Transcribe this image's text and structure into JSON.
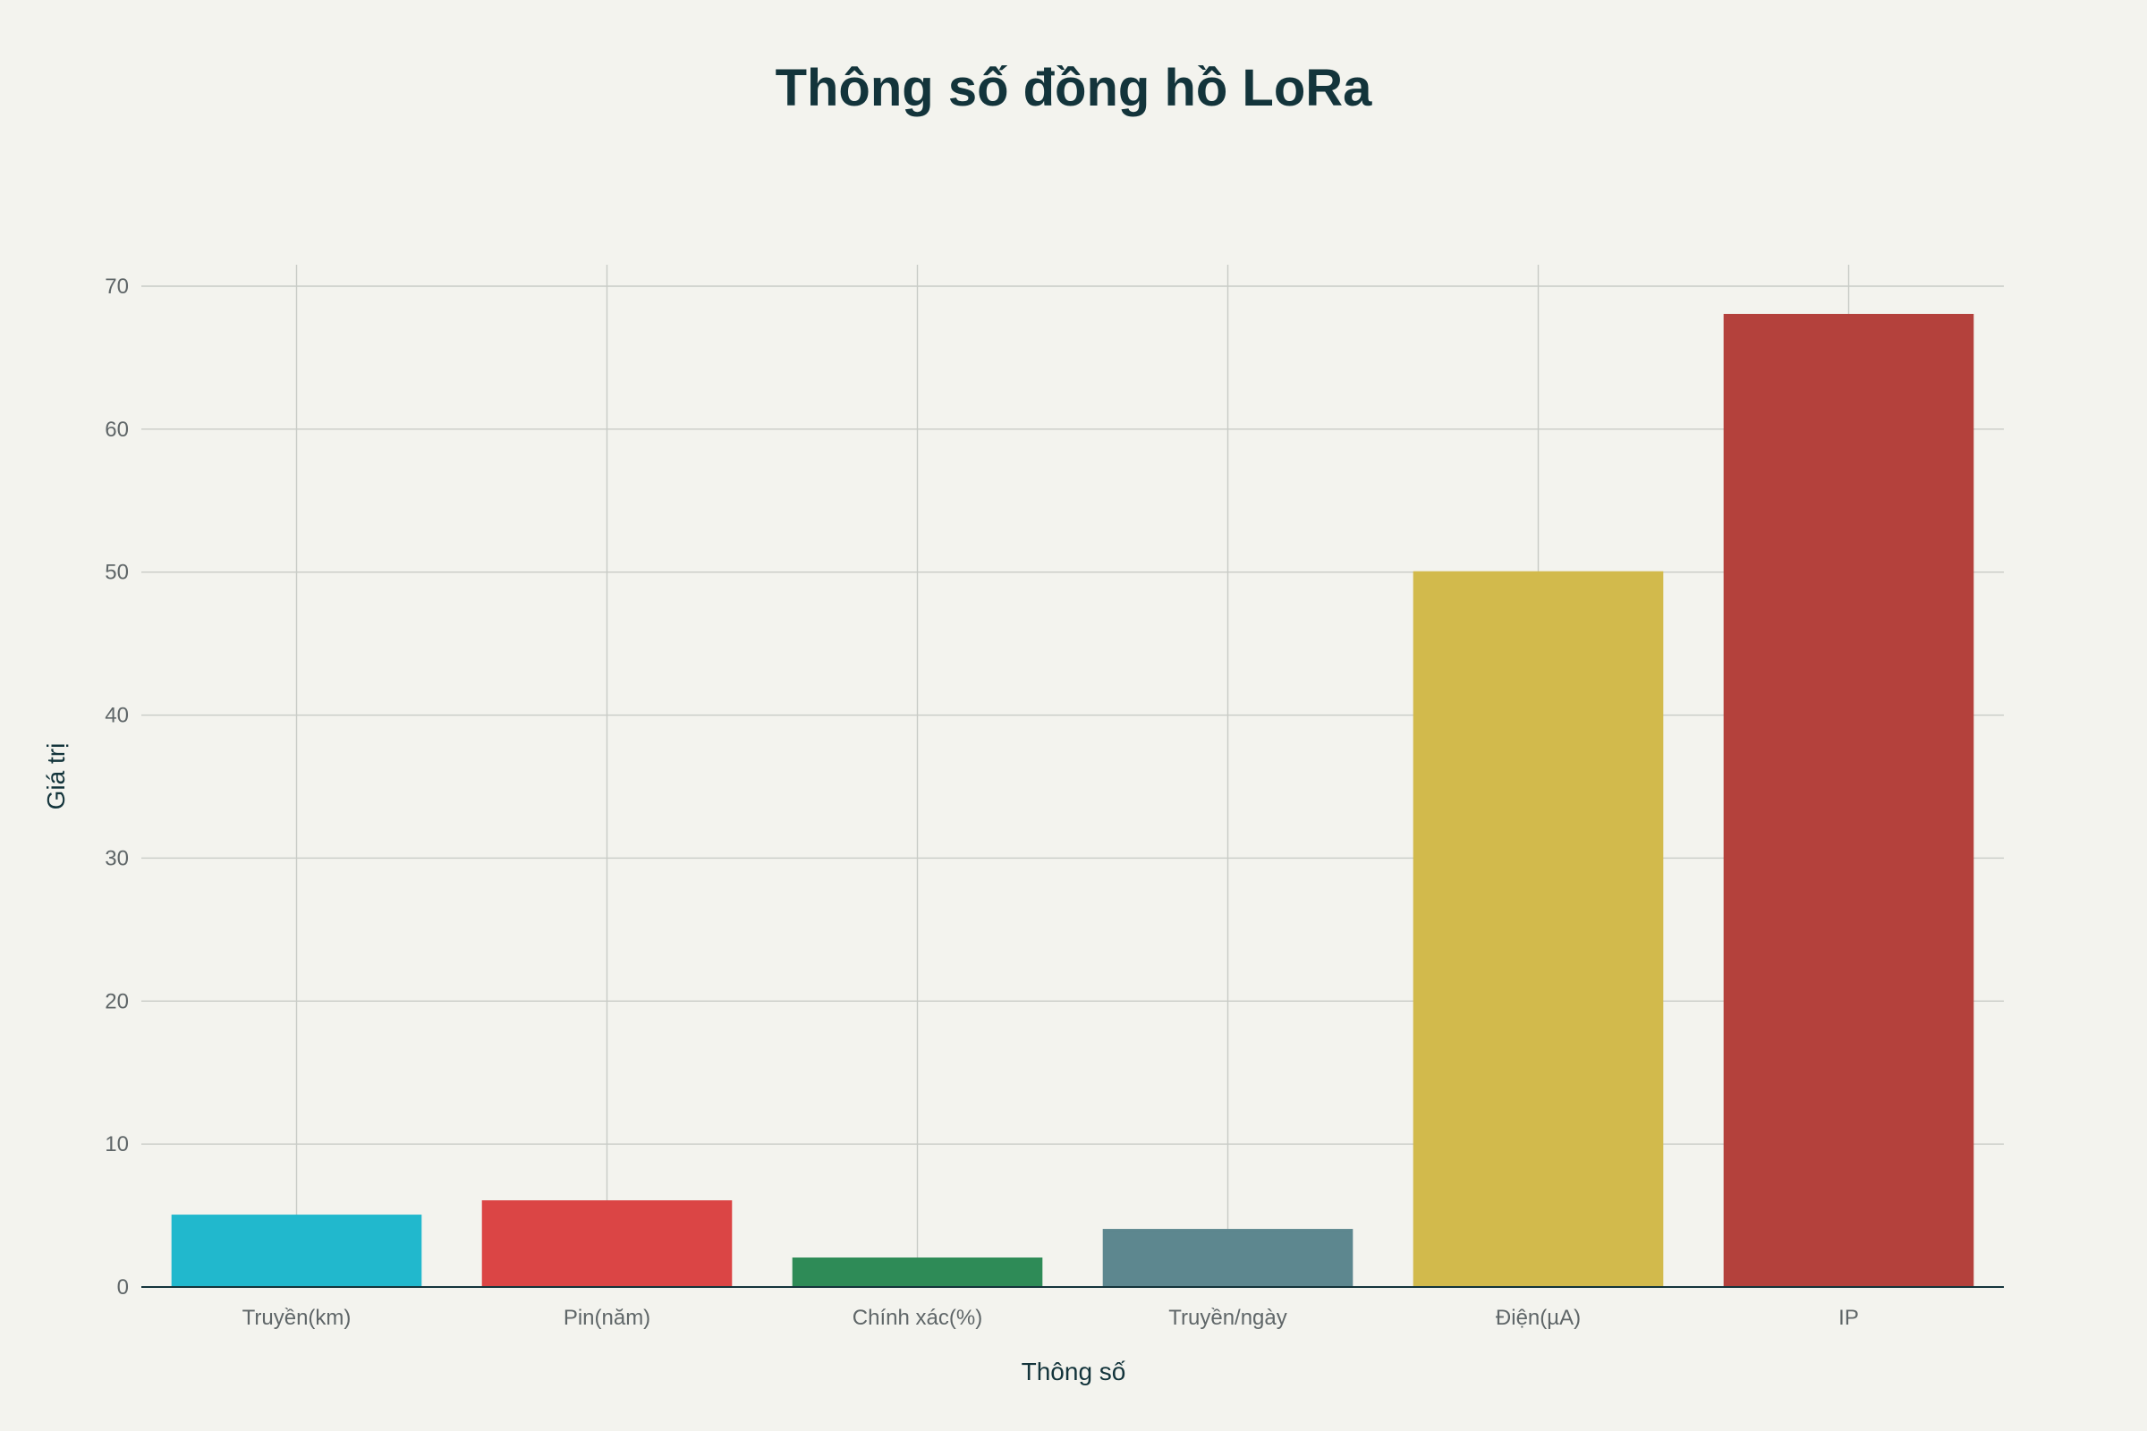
{
  "chart_data": {
    "type": "bar",
    "title": "Thông số đồng hồ LoRa",
    "xlabel": "Thông số",
    "ylabel": "Giá trị",
    "categories": [
      "Truyền(km)",
      "Pin(năm)",
      "Chính xác(%)",
      "Truyền/ngày",
      "Điện(µA)",
      "IP"
    ],
    "values": [
      5,
      6,
      2,
      4,
      50,
      68
    ],
    "colors": [
      "#21b8cd",
      "#db4545",
      "#2e8b57",
      "#5d878f",
      "#d2ba4c",
      "#b4413c"
    ],
    "ylim": [
      0,
      70
    ],
    "yticks": [
      0,
      10,
      20,
      30,
      40,
      50,
      60,
      70
    ],
    "grid": true,
    "legend": "none"
  }
}
